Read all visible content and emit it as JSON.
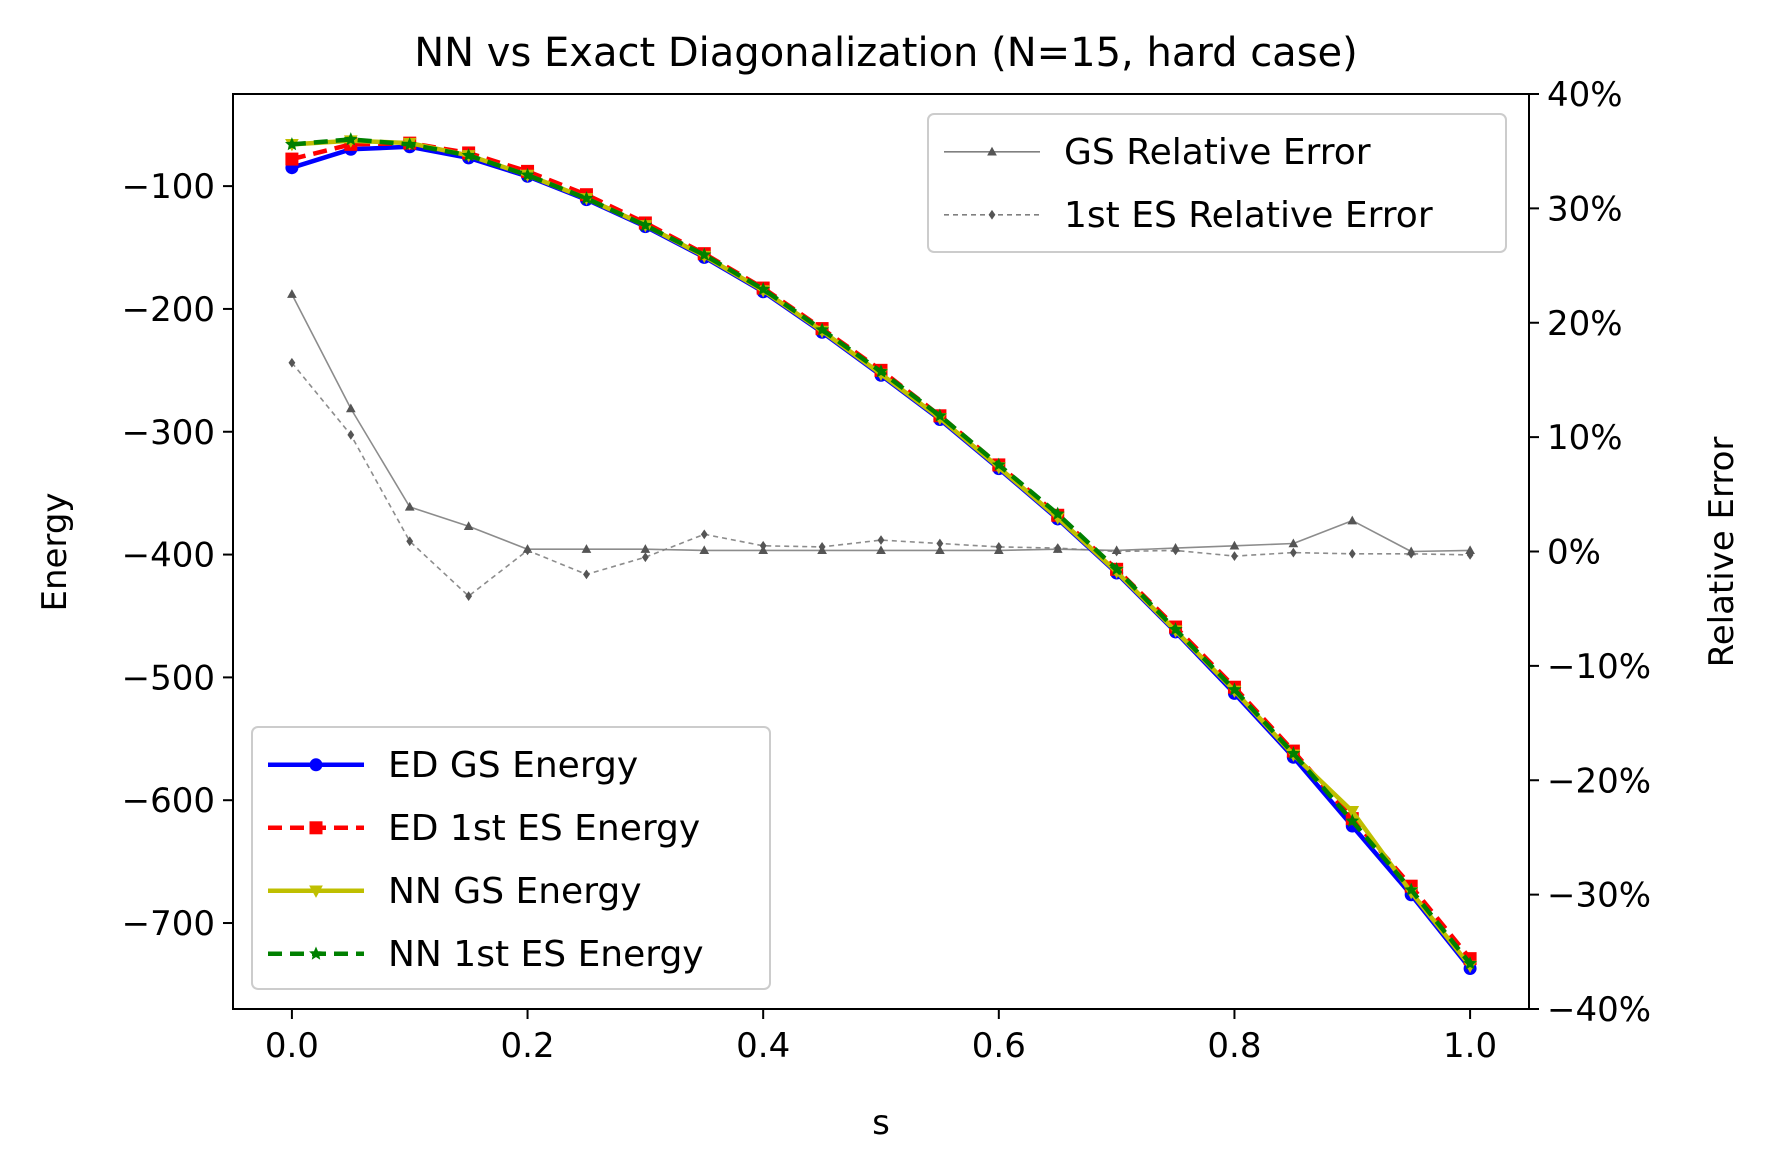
{
  "chart_data": {
    "type": "line",
    "title": "NN vs Exact Diagonalization (N=15, hard case)",
    "xlabel": "s",
    "ylabel": "Energy",
    "ylabel_right": "Relative Error",
    "xlim": [
      -0.05,
      1.05
    ],
    "ylim": [
      -770,
      -25
    ],
    "ylim_right": [
      -40,
      40
    ],
    "x_ticks": [
      0.0,
      0.2,
      0.4,
      0.6,
      0.8,
      1.0
    ],
    "x_tick_labels": [
      "0.0",
      "0.2",
      "0.4",
      "0.6",
      "0.8",
      "1.0"
    ],
    "y_ticks": [
      -100,
      -200,
      -300,
      -400,
      -500,
      -600,
      -700
    ],
    "y_tick_labels": [
      "−100",
      "−200",
      "−300",
      "−400",
      "−500",
      "−600",
      "−700"
    ],
    "y2_ticks": [
      40,
      30,
      20,
      10,
      0,
      -10,
      -20,
      -30,
      -40
    ],
    "y2_tick_labels": [
      "40%",
      "30%",
      "20%",
      "10%",
      "0%",
      "−10%",
      "−20%",
      "−30%",
      "−40%"
    ],
    "x": [
      0.0,
      0.05,
      0.1,
      0.15,
      0.2,
      0.25,
      0.3,
      0.35,
      0.4,
      0.45,
      0.5,
      0.55,
      0.6,
      0.65,
      0.7,
      0.75,
      0.8,
      0.85,
      0.9,
      0.95,
      1.0
    ],
    "series": [
      {
        "name": "ED GS Energy",
        "axis": "left",
        "color": "#0000ff",
        "linestyle": "solid",
        "marker": "circle",
        "values": [
          -85,
          -70,
          -68,
          -77,
          -92,
          -111,
          -133,
          -158,
          -186,
          -219,
          -254,
          -290,
          -330,
          -371,
          -415,
          -463,
          -513,
          -565,
          -621,
          -677,
          -737
        ]
      },
      {
        "name": "ED 1st ES Energy",
        "axis": "left",
        "color": "#ff0000",
        "linestyle": "dashed",
        "marker": "square",
        "values": [
          -78,
          -66,
          -65,
          -73,
          -88,
          -107,
          -130,
          -155,
          -183,
          -216,
          -250,
          -287,
          -327,
          -368,
          -412,
          -459,
          -508,
          -560,
          -615,
          -670,
          -729
        ]
      },
      {
        "name": "NN GS Energy",
        "axis": "left",
        "color": "#bfbf00",
        "linestyle": "solid",
        "marker": "triangle-down",
        "values": [
          -66,
          -63,
          -65,
          -75,
          -91,
          -110,
          -132,
          -157,
          -185,
          -218,
          -253,
          -289,
          -329,
          -370,
          -414,
          -462,
          -511,
          -563,
          -609,
          -675,
          -735
        ]
      },
      {
        "name": "NN 1st ES Energy",
        "axis": "left",
        "color": "#008000",
        "linestyle": "dashed",
        "marker": "star",
        "values": [
          -66,
          -62,
          -66,
          -75,
          -91,
          -110,
          -132,
          -156,
          -184,
          -217,
          -251,
          -287,
          -327,
          -367,
          -412,
          -461,
          -510,
          -562,
          -617,
          -673,
          -733
        ]
      },
      {
        "name": "GS Relative Error",
        "axis": "right",
        "color": "#808080",
        "linestyle": "solid",
        "marker": "triangle-up",
        "values": [
          22.5,
          12.5,
          3.9,
          2.2,
          0.2,
          0.2,
          0.2,
          0.1,
          0.1,
          0.1,
          0.1,
          0.1,
          0.1,
          0.2,
          0.1,
          0.3,
          0.5,
          0.7,
          2.7,
          0.0,
          0.1
        ]
      },
      {
        "name": "1st ES Relative Error",
        "axis": "right",
        "color": "#808080",
        "linestyle": "dashed",
        "marker": "diamond",
        "values": [
          16.5,
          10.2,
          0.9,
          -3.9,
          0.1,
          -2.0,
          -0.5,
          1.5,
          0.5,
          0.4,
          1.0,
          0.7,
          0.4,
          0.3,
          0.0,
          0.1,
          -0.4,
          -0.1,
          -0.2,
          -0.2,
          -0.3
        ]
      }
    ]
  }
}
